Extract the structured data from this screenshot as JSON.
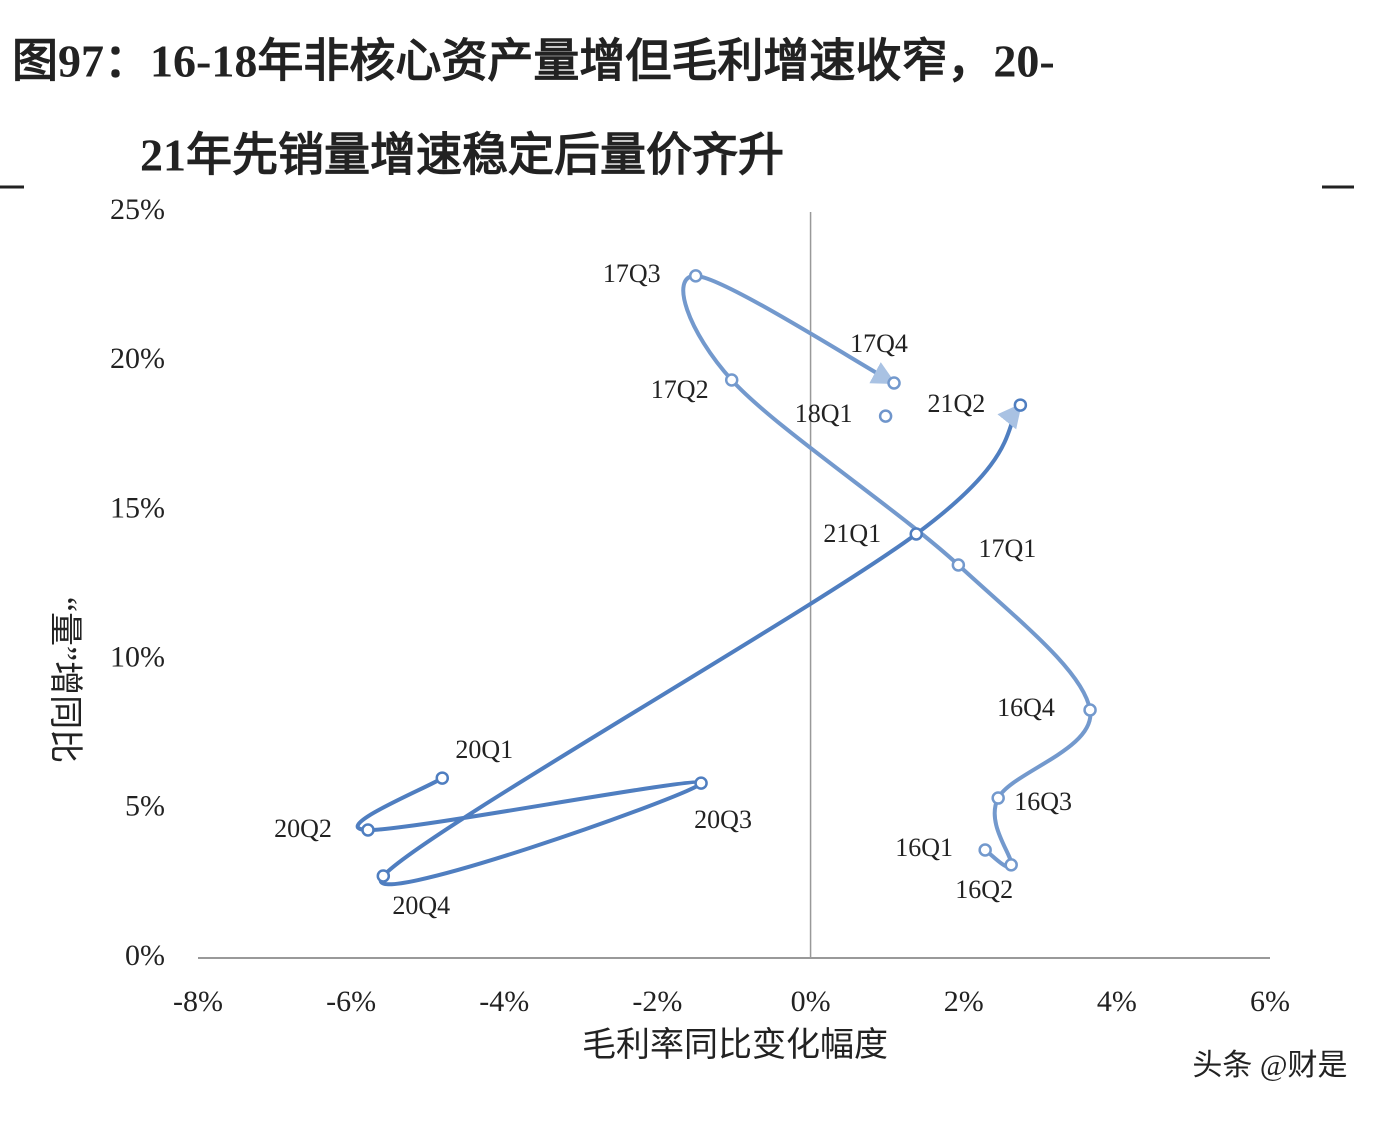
{
  "chart_data": {
    "type": "scatter",
    "title": [
      "图97：16-18年非核心资产量增但毛利增速收窄，20-",
      "21年先销量增速稳定后量价齐升"
    ],
    "x_label": "毛利率同比变化幅度",
    "y_label": "“量”增同比",
    "watermark": "头条 @财是",
    "xlim": [
      -8,
      6
    ],
    "ylim": [
      0,
      25
    ],
    "xticks": [
      {
        "value": -8,
        "label": "-8%"
      },
      {
        "value": -6,
        "label": "-6%"
      },
      {
        "value": -4,
        "label": "-4%"
      },
      {
        "value": -2,
        "label": "-2%"
      },
      {
        "value": 0,
        "label": "0%"
      },
      {
        "value": 2,
        "label": "2%"
      },
      {
        "value": 4,
        "label": "4%"
      },
      {
        "value": 6,
        "label": "6%"
      }
    ],
    "yticks": [
      {
        "value": 0,
        "label": "0%"
      },
      {
        "value": 5,
        "label": "5%"
      },
      {
        "value": 10,
        "label": "10%"
      },
      {
        "value": 15,
        "label": "15%"
      },
      {
        "value": 20,
        "label": "20%"
      },
      {
        "value": 25,
        "label": "25%"
      }
    ],
    "series": [
      {
        "color": "#7399cd",
        "arrow": true,
        "labels": [
          "16Q1",
          "16Q2",
          "16Q3",
          "16Q4",
          "17Q1",
          "17Q2",
          "17Q3",
          "17Q4"
        ],
        "x": [
          2.28,
          2.62,
          2.45,
          3.65,
          1.93,
          -1.03,
          -1.5,
          1.09
        ],
        "values": [
          3.62,
          3.12,
          5.36,
          8.31,
          13.17,
          19.37,
          22.86,
          19.27
        ]
      },
      {
        "color": "#6f95cb",
        "arrow": false,
        "labels": [
          "18Q1"
        ],
        "x": [
          0.98
        ],
        "values": [
          18.16
        ]
      },
      {
        "color": "#4f7ec0",
        "arrow": true,
        "labels": [
          "20Q1",
          "20Q2",
          "20Q3",
          "20Q4",
          "21Q1",
          "21Q2"
        ],
        "x": [
          -4.81,
          -5.78,
          -1.43,
          -5.58,
          1.38,
          2.74
        ],
        "values": [
          6.03,
          4.29,
          5.86,
          2.75,
          14.21,
          18.53
        ]
      }
    ]
  }
}
